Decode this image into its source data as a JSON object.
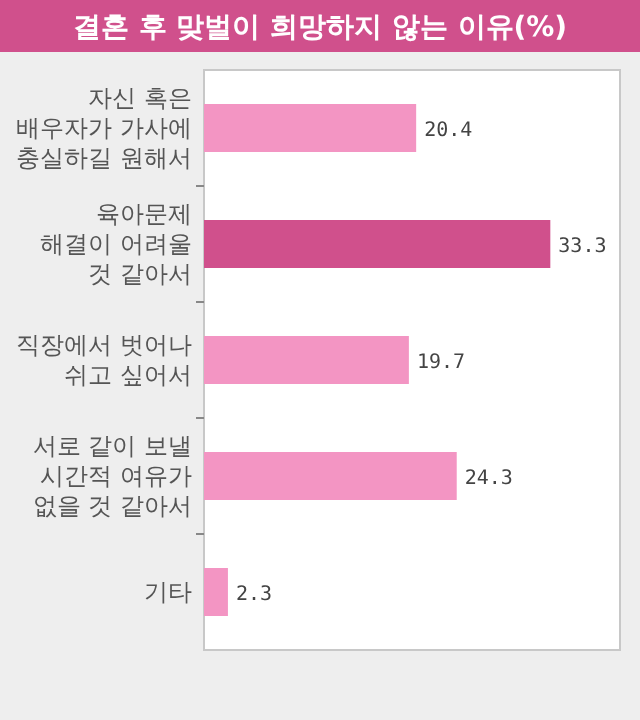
{
  "chart_data": {
    "type": "bar",
    "orientation": "horizontal",
    "title": "결혼 후 맞벌이 희망하지 않는 이유(%)",
    "categories": [
      "자신 혹은\n배우자가 가사에\n충실하길 원해서",
      "육아문제\n해결이 어려울\n것 같아서",
      "직장에서 벗어나\n쉬고 싶어서",
      "서로 같이 보낼\n시간적 여유가\n없을 것 같아서",
      "기타"
    ],
    "values": [
      20.4,
      33.3,
      19.7,
      24.3,
      2.3
    ],
    "colors": [
      "#f395c3",
      "#d0508c",
      "#f395c3",
      "#f395c3",
      "#f395c3"
    ],
    "xlim": [
      0,
      40
    ],
    "data_labels": true
  }
}
